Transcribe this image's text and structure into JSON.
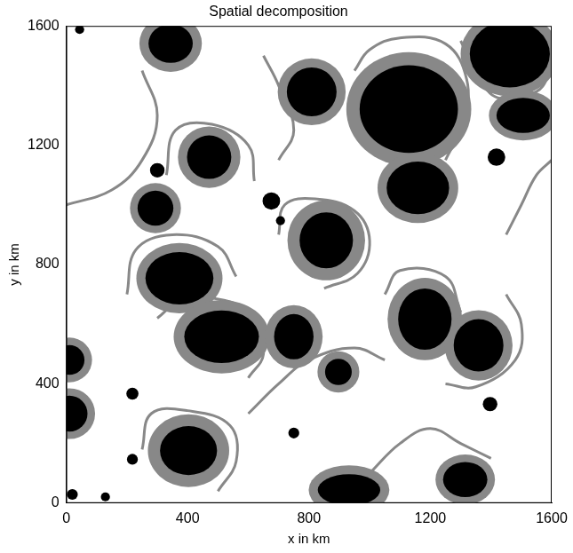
{
  "chart_data": {
    "type": "region_map",
    "title": "Spatial decomposition",
    "x_label": "x in km",
    "y_label": "y in km",
    "xlim": [
      0,
      1600
    ],
    "ylim": [
      0,
      1600
    ],
    "xticks": [
      0,
      400,
      800,
      1200,
      1600
    ],
    "yticks": [
      0,
      400,
      800,
      1200,
      1600
    ],
    "grid": false,
    "series": [
      {
        "type": "line",
        "color": "#888888",
        "lines": [
          [
            [
              950,
              1450
            ],
            [
              1000,
              1520
            ],
            [
              1100,
              1560
            ],
            [
              1250,
              1540
            ],
            [
              1320,
              1420
            ],
            [
              1310,
              1280
            ],
            [
              1250,
              1150
            ]
          ],
          [
            [
              700,
              900
            ],
            [
              720,
              1000
            ],
            [
              820,
              1020
            ],
            [
              950,
              980
            ],
            [
              1000,
              880
            ],
            [
              960,
              770
            ],
            [
              850,
              720
            ]
          ],
          [
            [
              200,
              700
            ],
            [
              230,
              850
            ],
            [
              350,
              900
            ],
            [
              500,
              860
            ],
            [
              560,
              760
            ]
          ],
          [
            [
              300,
              620
            ],
            [
              380,
              680
            ],
            [
              520,
              680
            ],
            [
              620,
              620
            ],
            [
              650,
              500
            ],
            [
              600,
              420
            ]
          ],
          [
            [
              1050,
              700
            ],
            [
              1100,
              780
            ],
            [
              1250,
              760
            ],
            [
              1300,
              640
            ]
          ],
          [
            [
              1250,
              400
            ],
            [
              1350,
              390
            ],
            [
              1480,
              480
            ],
            [
              1500,
              600
            ],
            [
              1450,
              700
            ]
          ],
          [
            [
              250,
              180
            ],
            [
              280,
              300
            ],
            [
              400,
              310
            ],
            [
              540,
              260
            ],
            [
              560,
              140
            ],
            [
              500,
              40
            ]
          ],
          [
            [
              330,
              1100
            ],
            [
              360,
              1250
            ],
            [
              480,
              1270
            ],
            [
              600,
              1200
            ],
            [
              620,
              1080
            ]
          ],
          [
            [
              1300,
              1550
            ],
            [
              1350,
              1450
            ],
            [
              1420,
              1360
            ],
            [
              1550,
              1380
            ],
            [
              1600,
              1450
            ]
          ],
          [
            [
              0,
              1000
            ],
            [
              150,
              1050
            ],
            [
              250,
              1150
            ],
            [
              300,
              1300
            ],
            [
              250,
              1450
            ]
          ],
          [
            [
              600,
              300
            ],
            [
              700,
              400
            ],
            [
              800,
              480
            ],
            [
              950,
              520
            ],
            [
              1050,
              480
            ]
          ],
          [
            [
              1000,
              100
            ],
            [
              1100,
              200
            ],
            [
              1200,
              250
            ],
            [
              1300,
              200
            ],
            [
              1400,
              150
            ]
          ],
          [
            [
              1450,
              900
            ],
            [
              1500,
              1000
            ],
            [
              1550,
              1100
            ],
            [
              1600,
              1150
            ]
          ],
          [
            [
              650,
              1500
            ],
            [
              700,
              1400
            ],
            [
              750,
              1250
            ],
            [
              700,
              1150
            ]
          ]
        ]
      },
      {
        "type": "ellipse",
        "color": "#888888",
        "values": [
          {
            "x": 344,
            "y": 1541,
            "rx": 103,
            "ry": 95
          },
          {
            "x": 1462,
            "y": 1506,
            "rx": 162,
            "ry": 142
          },
          {
            "x": 1506,
            "y": 1300,
            "rx": 113,
            "ry": 84
          },
          {
            "x": 1129,
            "y": 1321,
            "rx": 206,
            "ry": 191
          },
          {
            "x": 809,
            "y": 1379,
            "rx": 112,
            "ry": 112
          },
          {
            "x": 471,
            "y": 1160,
            "rx": 103,
            "ry": 103
          },
          {
            "x": 1159,
            "y": 1057,
            "rx": 133,
            "ry": 118
          },
          {
            "x": 294,
            "y": 989,
            "rx": 84,
            "ry": 84
          },
          {
            "x": 857,
            "y": 881,
            "rx": 128,
            "ry": 134
          },
          {
            "x": 373,
            "y": 754,
            "rx": 142,
            "ry": 118
          },
          {
            "x": 512,
            "y": 558,
            "rx": 158,
            "ry": 123
          },
          {
            "x": 750,
            "y": 558,
            "rx": 95,
            "ry": 106
          },
          {
            "x": 1182,
            "y": 617,
            "rx": 123,
            "ry": 138
          },
          {
            "x": 1359,
            "y": 529,
            "rx": 112,
            "ry": 118
          },
          {
            "x": 897,
            "y": 440,
            "rx": 69,
            "ry": 69
          },
          {
            "x": 403,
            "y": 176,
            "rx": 134,
            "ry": 122
          },
          {
            "x": 932,
            "y": 44,
            "rx": 133,
            "ry": 83
          },
          {
            "x": 1315,
            "y": 79,
            "rx": 98,
            "ry": 84
          },
          {
            "x": 10,
            "y": 480,
            "rx": 75,
            "ry": 75
          },
          {
            "x": 10,
            "y": 300,
            "rx": 85,
            "ry": 85
          }
        ]
      },
      {
        "type": "ellipse",
        "color": "#000000",
        "values": [
          {
            "x": 344,
            "y": 1541,
            "rx": 73,
            "ry": 65
          },
          {
            "x": 1462,
            "y": 1506,
            "rx": 132,
            "ry": 112
          },
          {
            "x": 1506,
            "y": 1300,
            "rx": 88,
            "ry": 59
          },
          {
            "x": 1129,
            "y": 1321,
            "rx": 162,
            "ry": 147
          },
          {
            "x": 809,
            "y": 1379,
            "rx": 82,
            "ry": 82
          },
          {
            "x": 471,
            "y": 1160,
            "rx": 73,
            "ry": 73
          },
          {
            "x": 1159,
            "y": 1057,
            "rx": 103,
            "ry": 88
          },
          {
            "x": 294,
            "y": 989,
            "rx": 59,
            "ry": 59
          },
          {
            "x": 857,
            "y": 881,
            "rx": 88,
            "ry": 94
          },
          {
            "x": 373,
            "y": 754,
            "rx": 112,
            "ry": 88
          },
          {
            "x": 512,
            "y": 558,
            "rx": 123,
            "ry": 88
          },
          {
            "x": 750,
            "y": 558,
            "rx": 65,
            "ry": 76
          },
          {
            "x": 1182,
            "y": 617,
            "rx": 88,
            "ry": 103
          },
          {
            "x": 1359,
            "y": 529,
            "rx": 82,
            "ry": 88
          },
          {
            "x": 897,
            "y": 440,
            "rx": 44,
            "ry": 44
          },
          {
            "x": 403,
            "y": 176,
            "rx": 94,
            "ry": 82
          },
          {
            "x": 932,
            "y": 44,
            "rx": 103,
            "ry": 53
          },
          {
            "x": 1315,
            "y": 79,
            "rx": 73,
            "ry": 59
          },
          {
            "x": 10,
            "y": 480,
            "rx": 50,
            "ry": 50
          },
          {
            "x": 10,
            "y": 300,
            "rx": 60,
            "ry": 60
          },
          {
            "x": 300,
            "y": 1116,
            "rx": 24,
            "ry": 24
          },
          {
            "x": 676,
            "y": 1013,
            "rx": 29,
            "ry": 29
          },
          {
            "x": 218,
            "y": 367,
            "rx": 20,
            "ry": 20
          },
          {
            "x": 218,
            "y": 147,
            "rx": 18,
            "ry": 18
          },
          {
            "x": 750,
            "y": 235,
            "rx": 18,
            "ry": 18
          },
          {
            "x": 1397,
            "y": 332,
            "rx": 24,
            "ry": 24
          },
          {
            "x": 1418,
            "y": 1160,
            "rx": 29,
            "ry": 29
          },
          {
            "x": 20,
            "y": 29,
            "rx": 18,
            "ry": 18
          },
          {
            "x": 129,
            "y": 21,
            "rx": 15,
            "ry": 15
          },
          {
            "x": 44,
            "y": 1588,
            "rx": 15,
            "ry": 15
          },
          {
            "x": 706,
            "y": 947,
            "rx": 15,
            "ry": 15
          }
        ]
      }
    ]
  }
}
